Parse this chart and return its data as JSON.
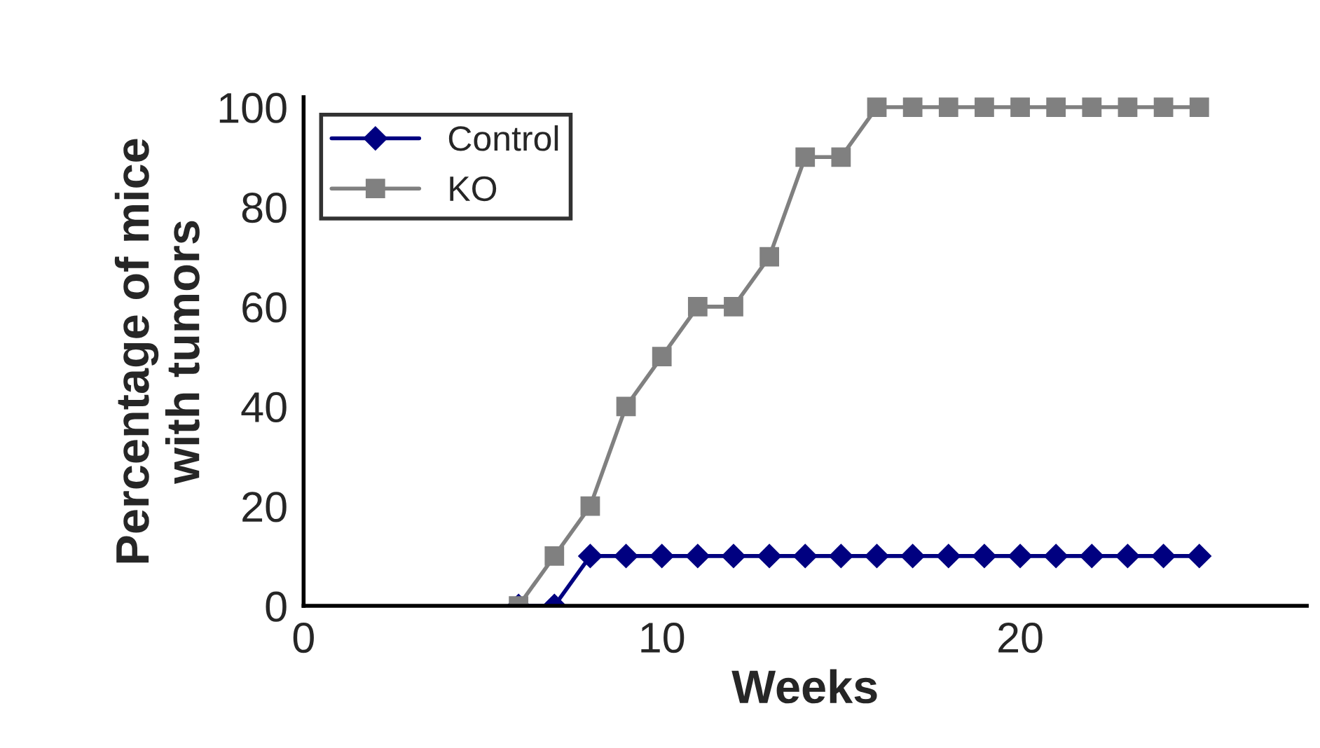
{
  "chart_data": {
    "type": "line",
    "xlabel": "Weeks",
    "ylabel": "Percentage of mice\nwith tumors",
    "x": [
      6,
      7,
      8,
      9,
      10,
      11,
      12,
      13,
      14,
      15,
      16,
      17,
      18,
      19,
      20,
      21,
      22,
      23,
      24,
      25
    ],
    "series": [
      {
        "name": "Control",
        "color": "#000080",
        "marker": "diamond",
        "values": [
          0,
          0,
          10,
          10,
          10,
          10,
          10,
          10,
          10,
          10,
          10,
          10,
          10,
          10,
          10,
          10,
          10,
          10,
          10,
          10
        ]
      },
      {
        "name": "KO",
        "color": "#808080",
        "marker": "square",
        "values": [
          0,
          10,
          20,
          40,
          50,
          60,
          60,
          70,
          90,
          90,
          100,
          100,
          100,
          100,
          100,
          100,
          100,
          100,
          100,
          100
        ]
      }
    ],
    "xlim": [
      0,
      28
    ],
    "xticks": [
      0,
      10,
      20
    ],
    "ylim": [
      0,
      102
    ],
    "yticks": [
      0,
      20,
      40,
      60,
      80,
      100
    ],
    "grid": false,
    "legend": "top left",
    "line_style": "solid"
  }
}
